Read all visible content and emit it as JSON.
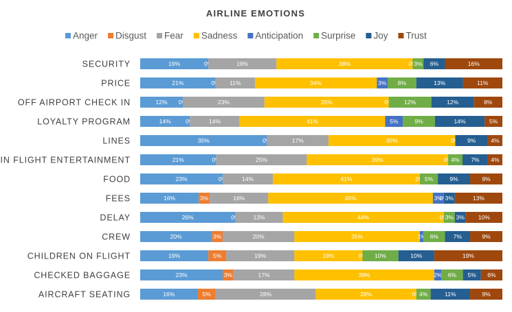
{
  "chart_data": {
    "type": "bar",
    "orientation": "horizontal",
    "stacked": "percent",
    "title": "AIRLINE EMOTIONS",
    "legend_position": "top",
    "grid": false,
    "value_format": "percent",
    "categories": [
      "SECURITY",
      "PRICE",
      "OFF AIRPORT CHECK IN",
      "LOYALTY PROGRAM",
      "LINES",
      "IN FLIGHT ENTERTAINMENT",
      "FOOD",
      "FEES",
      "DELAY",
      "CREW",
      "CHILDREN ON FLIGHT",
      "CHECKED BAGGAGE",
      "AIRCRAFT SEATING"
    ],
    "series": [
      {
        "name": "Anger",
        "color": "#5b9bd5",
        "values": [
          19,
          21,
          12,
          14,
          35,
          21,
          23,
          16,
          26,
          20,
          19,
          23,
          16
        ]
      },
      {
        "name": "Disgust",
        "color": "#ed7d31",
        "values": [
          0,
          0,
          0,
          0,
          0,
          0,
          0,
          3,
          0,
          3,
          5,
          3,
          5
        ]
      },
      {
        "name": "Fear",
        "color": "#a5a5a5",
        "values": [
          19,
          11,
          23,
          14,
          17,
          25,
          14,
          16,
          13,
          20,
          19,
          17,
          28
        ]
      },
      {
        "name": "Sadness",
        "color": "#ffc000",
        "values": [
          38,
          34,
          35,
          41,
          35,
          39,
          41,
          45,
          44,
          35,
          19,
          39,
          28
        ]
      },
      {
        "name": "Anticipation",
        "color": "#4472c4",
        "values": [
          0,
          3,
          0,
          5,
          0,
          0,
          0,
          3,
          0,
          1,
          0,
          2,
          0
        ]
      },
      {
        "name": "Surprise",
        "color": "#70ad47",
        "values": [
          3,
          8,
          12,
          9,
          0,
          4,
          5,
          0,
          3,
          6,
          10,
          6,
          4
        ]
      },
      {
        "name": "Joy",
        "color": "#255e91",
        "values": [
          6,
          13,
          12,
          14,
          9,
          7,
          9,
          3,
          3,
          7,
          10,
          5,
          11
        ]
      },
      {
        "name": "Trust",
        "color": "#9e480e",
        "values": [
          16,
          11,
          8,
          5,
          4,
          4,
          9,
          13,
          10,
          9,
          19,
          6,
          9
        ]
      }
    ]
  }
}
